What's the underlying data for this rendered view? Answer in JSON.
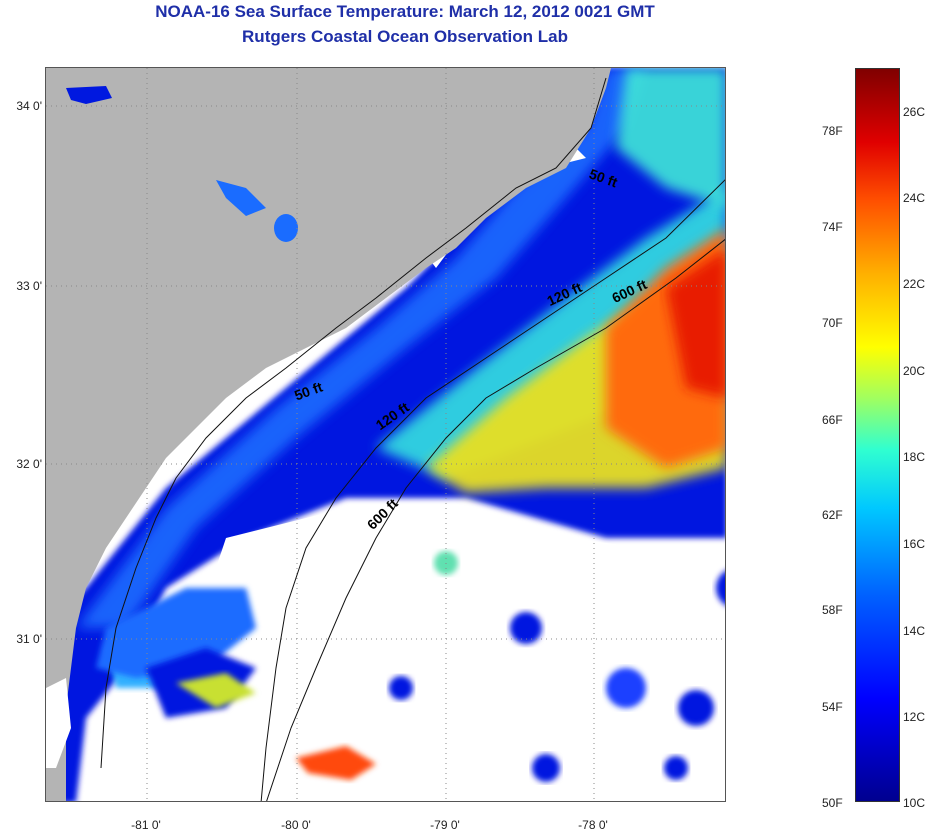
{
  "header": {
    "title": "NOAA-16 Sea Surface Temperature:  March 12, 2012 0021 GMT",
    "subtitle": "Rutgers Coastal Ocean Observation Lab"
  },
  "axes": {
    "lat_labels": [
      "34 0'",
      "33 0'",
      "32 0'",
      "31 0'"
    ],
    "lon_labels": [
      "-81 0'",
      "-80 0'",
      "-79 0'",
      "-78 0'"
    ]
  },
  "contours": {
    "labels": [
      "50 ft",
      "120 ft",
      "600 ft",
      "50 ft",
      "120 ft",
      "600 ft"
    ]
  },
  "colorbar": {
    "fahrenheit_labels": [
      "78F",
      "74F",
      "70F",
      "66F",
      "62F",
      "58F",
      "54F",
      "50F"
    ],
    "celsius_labels": [
      "26C",
      "24C",
      "22C",
      "20C",
      "18C",
      "16C",
      "14C",
      "12C",
      "10C"
    ],
    "colors": [
      "#00008f",
      "#0000ff",
      "#0060ff",
      "#00c8ff",
      "#30ffd0",
      "#a0ff60",
      "#ffff00",
      "#ffb000",
      "#ff5000",
      "#e00000",
      "#800000"
    ]
  },
  "legend_colors": {
    "land": "#b4b4b4",
    "no_data": "#ffffff",
    "title_color": "#1f2fa8"
  }
}
